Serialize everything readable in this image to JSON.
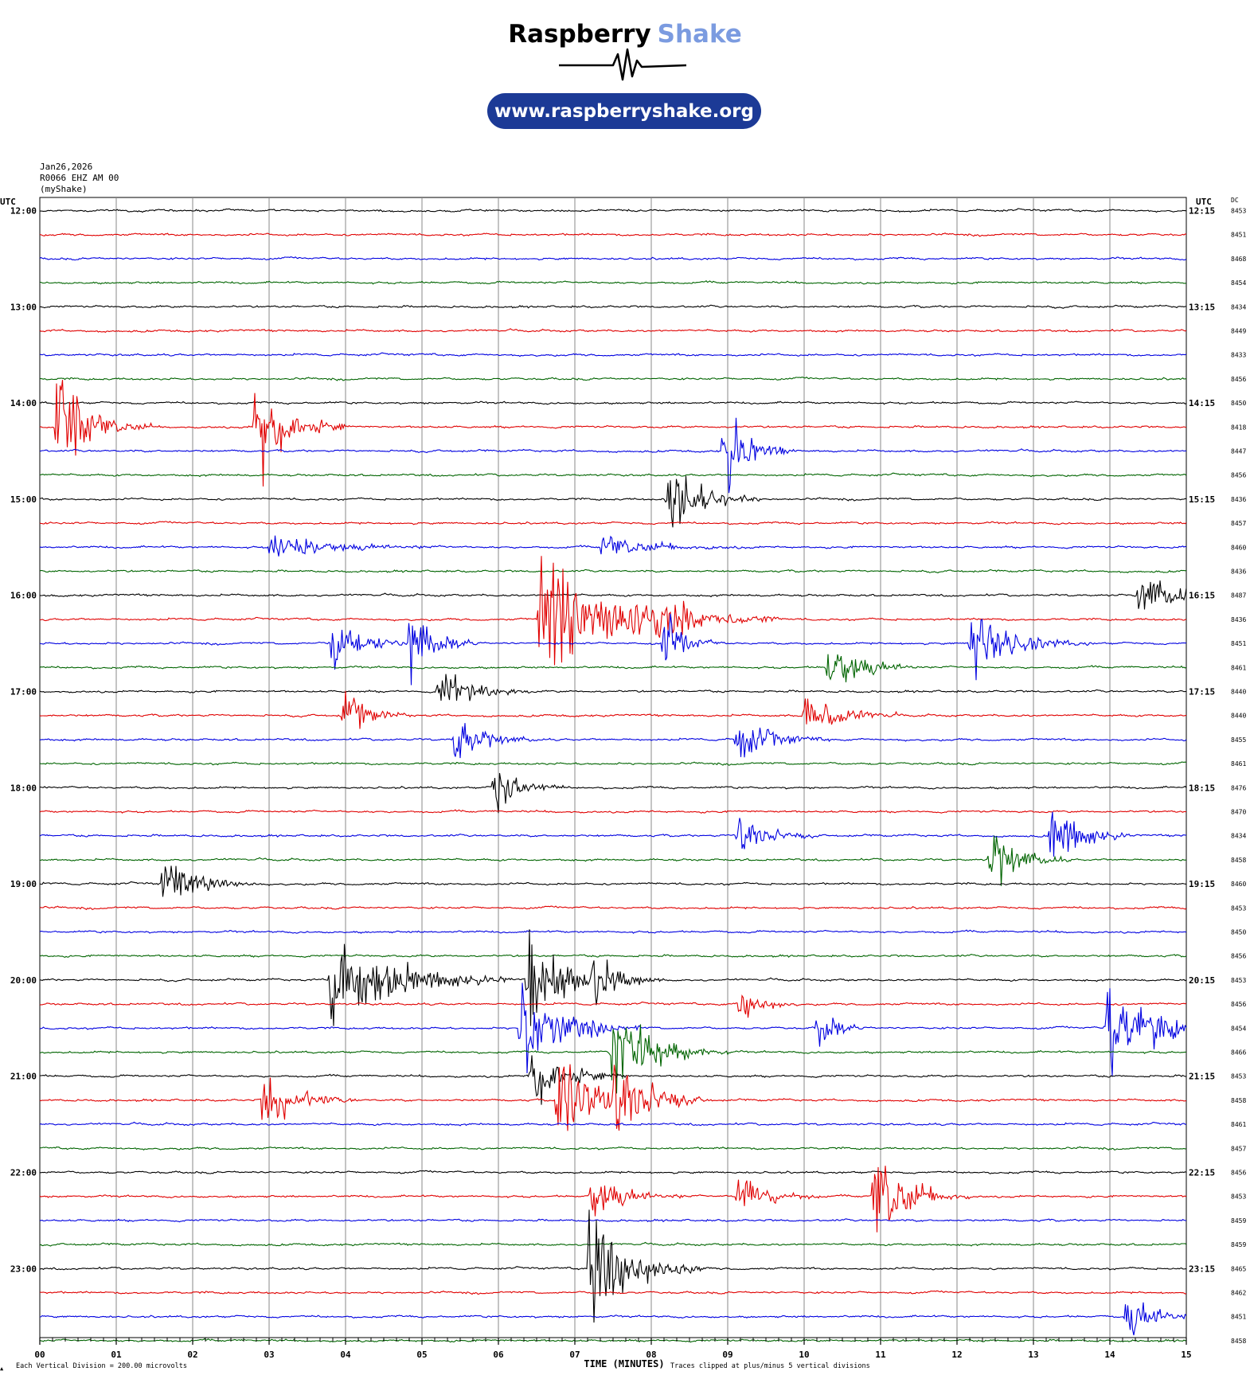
{
  "brand": {
    "name_part1": "Raspberry",
    "name_part2": "Shake",
    "url": "www.raspberryshake.org",
    "color_dark": "#000000",
    "color_accent": "#7b9be0",
    "pill_color": "#1c3a96"
  },
  "header": {
    "date": "Jan26,2026",
    "station": "R0066 EHZ AM 00",
    "source": "(myShake)"
  },
  "labels": {
    "utc_left": "UTC",
    "utc_right": "UTC",
    "dc": "DC",
    "xlabel": "TIME (MINUTES)",
    "footer_left": "Each Vertical Division =  200.00 microvolts",
    "footer_right": "Traces clipped at plus/minus 5 vertical divisions",
    "footer_mark": "▲"
  },
  "chart_data": {
    "type": "helicorder",
    "x_ticks": [
      "00",
      "01",
      "02",
      "03",
      "04",
      "05",
      "06",
      "07",
      "08",
      "09",
      "10",
      "11",
      "12",
      "13",
      "14",
      "15"
    ],
    "xlim": [
      0,
      15
    ],
    "trace_colors": [
      "#000000",
      "#e00000",
      "#0000e0",
      "#006400"
    ],
    "left_hour_labels": [
      "12:00",
      "13:00",
      "14:00",
      "15:00",
      "16:00",
      "17:00",
      "18:00",
      "19:00",
      "20:00",
      "21:00",
      "22:00",
      "23:00"
    ],
    "right_hour_labels": [
      "12:15",
      "13:15",
      "14:15",
      "15:15",
      "16:15",
      "17:15",
      "18:15",
      "19:15",
      "20:15",
      "21:15",
      "22:15",
      "23:15"
    ],
    "dc_values": [
      "8453",
      "8451",
      "8468",
      "8454",
      "8434",
      "8449",
      "8433",
      "8456",
      "8450",
      "8418",
      "8447",
      "8456",
      "8436",
      "8457",
      "8460",
      "8436",
      "8487",
      "8436",
      "8451",
      "8461",
      "8440",
      "8440",
      "8455",
      "8461",
      "8476",
      "8470",
      "8434",
      "8458",
      "8460",
      "8453",
      "8450",
      "8456",
      "8453",
      "8456",
      "8454",
      "8466",
      "8453",
      "8458",
      "8461",
      "8457",
      "8456",
      "8453",
      "8459",
      "8459",
      "8465",
      "8462",
      "8451",
      "8458"
    ],
    "events": [
      {
        "row": 9,
        "minute": 0.3,
        "amplitude": 4.5,
        "duration_min": 0.8
      },
      {
        "row": 9,
        "minute": 2.9,
        "amplitude": 4.5,
        "duration_min": 0.8
      },
      {
        "row": 10,
        "minute": 9.0,
        "amplitude": 4.0,
        "duration_min": 0.6
      },
      {
        "row": 12,
        "minute": 8.3,
        "amplitude": 3.5,
        "duration_min": 0.8
      },
      {
        "row": 14,
        "minute": 3.2,
        "amplitude": 1.0,
        "duration_min": 1.5
      },
      {
        "row": 14,
        "minute": 7.5,
        "amplitude": 1.0,
        "duration_min": 1.2
      },
      {
        "row": 16,
        "minute": 14.5,
        "amplitude": 1.8,
        "duration_min": 1.0
      },
      {
        "row": 17,
        "minute": 6.8,
        "amplitude": 5.0,
        "duration_min": 2.0
      },
      {
        "row": 17,
        "minute": 8.1,
        "amplitude": 2.0,
        "duration_min": 0.6
      },
      {
        "row": 18,
        "minute": 3.9,
        "amplitude": 2.5,
        "duration_min": 0.8
      },
      {
        "row": 18,
        "minute": 4.9,
        "amplitude": 3.0,
        "duration_min": 0.6
      },
      {
        "row": 18,
        "minute": 8.2,
        "amplitude": 3.0,
        "duration_min": 0.5
      },
      {
        "row": 18,
        "minute": 12.3,
        "amplitude": 2.8,
        "duration_min": 1.0
      },
      {
        "row": 19,
        "minute": 10.4,
        "amplitude": 2.5,
        "duration_min": 0.8
      },
      {
        "row": 20,
        "minute": 5.3,
        "amplitude": 2.2,
        "duration_min": 0.8
      },
      {
        "row": 21,
        "minute": 4.0,
        "amplitude": 2.2,
        "duration_min": 0.6
      },
      {
        "row": 21,
        "minute": 10.1,
        "amplitude": 2.5,
        "duration_min": 0.8
      },
      {
        "row": 22,
        "minute": 5.5,
        "amplitude": 2.2,
        "duration_min": 0.7
      },
      {
        "row": 22,
        "minute": 9.2,
        "amplitude": 2.0,
        "duration_min": 0.8
      },
      {
        "row": 24,
        "minute": 6.0,
        "amplitude": 2.5,
        "duration_min": 0.6
      },
      {
        "row": 26,
        "minute": 9.2,
        "amplitude": 2.0,
        "duration_min": 0.7
      },
      {
        "row": 26,
        "minute": 13.3,
        "amplitude": 3.0,
        "duration_min": 0.7
      },
      {
        "row": 27,
        "minute": 12.5,
        "amplitude": 2.8,
        "duration_min": 0.7
      },
      {
        "row": 28,
        "minute": 1.7,
        "amplitude": 2.5,
        "duration_min": 0.8
      },
      {
        "row": 32,
        "minute": 4.0,
        "amplitude": 4.5,
        "duration_min": 1.5
      },
      {
        "row": 32,
        "minute": 6.5,
        "amplitude": 4.0,
        "duration_min": 1.0
      },
      {
        "row": 32,
        "minute": 7.3,
        "amplitude": 1.5,
        "duration_min": 0.6
      },
      {
        "row": 33,
        "minute": 9.2,
        "amplitude": 1.8,
        "duration_min": 0.5
      },
      {
        "row": 34,
        "minute": 6.4,
        "amplitude": 4.0,
        "duration_min": 1.0
      },
      {
        "row": 34,
        "minute": 10.2,
        "amplitude": 2.5,
        "duration_min": 0.4
      },
      {
        "row": 34,
        "minute": 14.1,
        "amplitude": 5.0,
        "duration_min": 1.2
      },
      {
        "row": 35,
        "minute": 7.6,
        "amplitude": 4.0,
        "duration_min": 1.0
      },
      {
        "row": 36,
        "minute": 6.5,
        "amplitude": 3.0,
        "duration_min": 0.8
      },
      {
        "row": 37,
        "minute": 3.0,
        "amplitude": 2.5,
        "duration_min": 0.8
      },
      {
        "row": 37,
        "minute": 6.9,
        "amplitude": 4.0,
        "duration_min": 1.2
      },
      {
        "row": 37,
        "minute": 7.6,
        "amplitude": 3.0,
        "duration_min": 0.8
      },
      {
        "row": 41,
        "minute": 7.3,
        "amplitude": 2.0,
        "duration_min": 0.8
      },
      {
        "row": 41,
        "minute": 9.2,
        "amplitude": 2.2,
        "duration_min": 0.7
      },
      {
        "row": 41,
        "minute": 11.0,
        "amplitude": 4.5,
        "duration_min": 0.8
      },
      {
        "row": 44,
        "minute": 7.3,
        "amplitude": 5.0,
        "duration_min": 1.0
      },
      {
        "row": 46,
        "minute": 14.3,
        "amplitude": 1.8,
        "duration_min": 0.8
      }
    ]
  }
}
